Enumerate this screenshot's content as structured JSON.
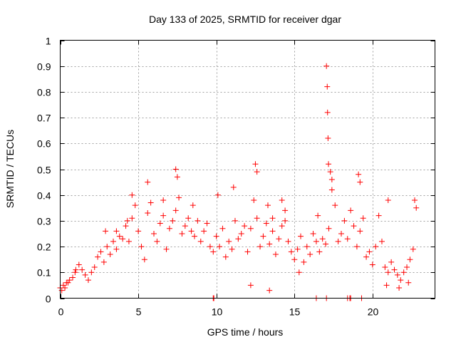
{
  "chart_data": {
    "type": "scatter",
    "title": "Day 133 of 2025, SRMTID for receiver dgar",
    "xlabel": "GPS time / hours",
    "ylabel": "SRMTID / TECUs",
    "xlim": [
      0,
      24
    ],
    "ylim": [
      0,
      1
    ],
    "xticks": [
      0,
      5,
      10,
      15,
      20
    ],
    "xtick_labels": [
      "0",
      "5",
      "10",
      "15",
      "20"
    ],
    "yticks": [
      0,
      0.1,
      0.2,
      0.3,
      0.4,
      0.5,
      0.6,
      0.7,
      0.8,
      0.9,
      1
    ],
    "ytick_labels": [
      "0",
      "0.1",
      "0.2",
      "0.3",
      "0.4",
      "0.5",
      "0.6",
      "0.7",
      "0.8",
      "0.9",
      "1"
    ],
    "grid": true,
    "marker": "plus",
    "marker_color": "#ff0000",
    "series": [
      {
        "name": "SRMTID",
        "x": [
          0.0,
          0.2,
          0.4,
          0.6,
          0.8,
          1.0,
          1.2,
          1.4,
          1.6,
          1.8,
          2.0,
          2.2,
          2.4,
          2.6,
          2.8,
          3.0,
          3.2,
          3.4,
          3.6,
          3.8,
          4.0,
          4.2,
          4.4,
          4.6,
          4.8,
          5.0,
          5.2,
          5.4,
          5.6,
          5.8,
          6.0,
          6.2,
          6.4,
          6.6,
          6.8,
          7.0,
          7.2,
          7.4,
          7.6,
          7.8,
          8.0,
          8.2,
          8.4,
          8.6,
          8.8,
          9.0,
          9.2,
          9.4,
          9.6,
          9.8,
          10.0,
          10.2,
          10.4,
          10.6,
          10.8,
          11.0,
          11.2,
          11.4,
          11.6,
          11.8,
          12.0,
          12.2,
          12.4,
          12.6,
          12.8,
          13.0,
          13.2,
          13.4,
          13.6,
          13.8,
          14.0,
          14.2,
          14.4,
          14.6,
          14.8,
          15.0,
          15.2,
          15.4,
          15.6,
          15.8,
          16.0,
          16.2,
          16.4,
          16.6,
          16.8,
          17.0,
          17.2,
          17.4,
          17.6,
          17.8,
          18.0,
          18.2,
          18.4,
          18.6,
          18.8,
          19.0,
          19.2,
          19.4,
          19.6,
          19.8,
          20.0,
          20.2,
          20.4,
          20.6,
          20.8,
          21.0,
          21.2,
          21.4,
          21.6,
          21.8,
          22.0,
          22.2,
          22.4,
          22.6,
          22.8,
          7.4,
          7.5,
          12.5,
          12.6,
          13.3,
          13.6,
          14.2,
          14.4,
          16.5,
          17.05,
          17.1,
          17.12,
          17.15,
          17.18,
          17.3,
          17.4,
          19.1,
          19.2,
          21.0,
          22.7,
          2.9,
          5.6,
          4.6,
          0.95,
          11.1,
          10.1,
          9.8,
          9.82,
          9.84,
          16.4,
          17.05,
          18.4,
          18.55,
          18.6,
          19.3,
          0.1,
          0.3,
          0.5,
          13.4,
          12.2,
          8.5,
          6.6,
          3.6,
          4.3,
          15.3,
          20.9,
          21.7,
          22.3
        ],
        "y": [
          0.04,
          0.05,
          0.06,
          0.07,
          0.08,
          0.11,
          0.13,
          0.11,
          0.09,
          0.07,
          0.1,
          0.12,
          0.16,
          0.18,
          0.14,
          0.2,
          0.17,
          0.22,
          0.19,
          0.24,
          0.23,
          0.28,
          0.22,
          0.31,
          0.36,
          0.26,
          0.2,
          0.15,
          0.33,
          0.37,
          0.25,
          0.22,
          0.29,
          0.32,
          0.19,
          0.27,
          0.3,
          0.34,
          0.39,
          0.25,
          0.28,
          0.31,
          0.26,
          0.24,
          0.3,
          0.22,
          0.26,
          0.29,
          0.2,
          0.18,
          0.24,
          0.2,
          0.27,
          0.16,
          0.22,
          0.19,
          0.3,
          0.23,
          0.25,
          0.28,
          0.18,
          0.27,
          0.38,
          0.31,
          0.2,
          0.24,
          0.29,
          0.21,
          0.26,
          0.17,
          0.23,
          0.28,
          0.3,
          0.22,
          0.18,
          0.15,
          0.19,
          0.24,
          0.14,
          0.2,
          0.17,
          0.25,
          0.22,
          0.18,
          0.23,
          0.21,
          0.27,
          0.42,
          0.36,
          0.22,
          0.25,
          0.3,
          0.23,
          0.34,
          0.28,
          0.2,
          0.26,
          0.31,
          0.16,
          0.18,
          0.13,
          0.2,
          0.32,
          0.22,
          0.12,
          0.1,
          0.14,
          0.11,
          0.09,
          0.07,
          0.1,
          0.12,
          0.15,
          0.19,
          0.35,
          0.5,
          0.47,
          0.52,
          0.49,
          0.36,
          0.31,
          0.38,
          0.34,
          0.32,
          0.9,
          0.82,
          0.72,
          0.62,
          0.52,
          0.49,
          0.46,
          0.48,
          0.45,
          0.38,
          0.38,
          0.26,
          0.45,
          0.4,
          0.1,
          0.43,
          0.4,
          0.0,
          0.0,
          0.0,
          0.0,
          0.0,
          0.0,
          0.0,
          0.0,
          0.0,
          0.03,
          0.04,
          0.06,
          0.03,
          0.05,
          0.36,
          0.38,
          0.26,
          0.3,
          0.1,
          0.05,
          0.04,
          0.06
        ]
      }
    ]
  }
}
